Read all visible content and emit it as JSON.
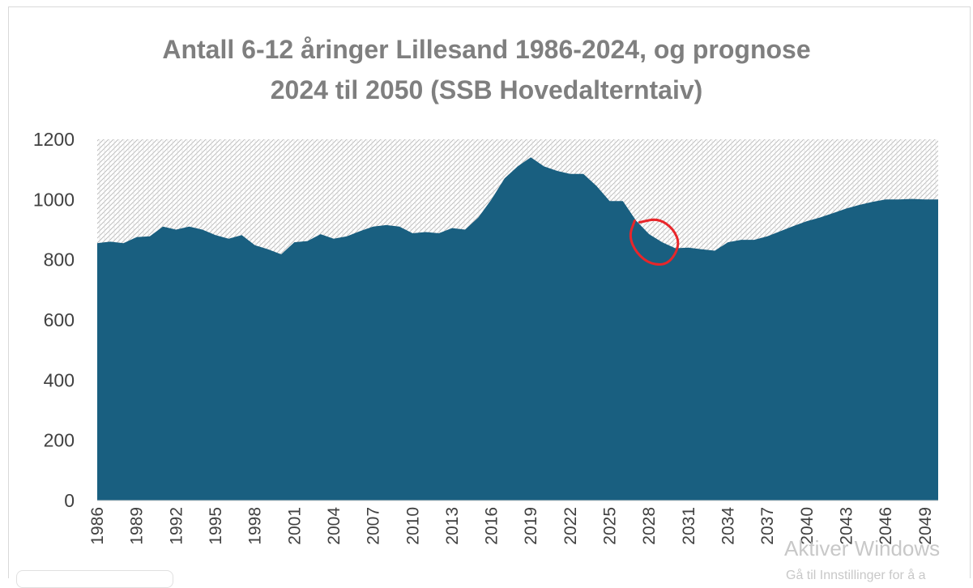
{
  "chart_data": {
    "type": "area",
    "title_lines": [
      "Antall 6-12 åringer Lillesand 1986-2024, og prognose",
      "2024 til 2050 (SSB Hovedalterntaiv)"
    ],
    "xlabel": "",
    "ylabel": "",
    "ylim": [
      0,
      1200
    ],
    "yticks": [
      0,
      200,
      400,
      600,
      800,
      1000,
      1200
    ],
    "x_tick_labels": [
      "1986",
      "1989",
      "1992",
      "1995",
      "1998",
      "2001",
      "2004",
      "2007",
      "2010",
      "2013",
      "2016",
      "2019",
      "2022",
      "2025",
      "2028",
      "2031",
      "2034",
      "2037",
      "2040",
      "2043",
      "2046",
      "2049"
    ],
    "x": [
      1986,
      1987,
      1988,
      1989,
      1990,
      1991,
      1992,
      1993,
      1994,
      1995,
      1996,
      1997,
      1998,
      1999,
      2000,
      2001,
      2002,
      2003,
      2004,
      2005,
      2006,
      2007,
      2008,
      2009,
      2010,
      2011,
      2012,
      2013,
      2014,
      2015,
      2016,
      2017,
      2018,
      2019,
      2020,
      2021,
      2022,
      2023,
      2024,
      2025,
      2026,
      2027,
      2028,
      2029,
      2030,
      2031,
      2032,
      2033,
      2034,
      2035,
      2036,
      2037,
      2038,
      2039,
      2040,
      2041,
      2042,
      2043,
      2044,
      2045,
      2046,
      2047,
      2048,
      2049,
      2050
    ],
    "values": [
      855,
      860,
      855,
      875,
      878,
      910,
      900,
      910,
      900,
      882,
      870,
      882,
      848,
      835,
      818,
      858,
      862,
      885,
      870,
      878,
      895,
      910,
      915,
      910,
      888,
      892,
      888,
      905,
      900,
      940,
      1000,
      1070,
      1110,
      1140,
      1110,
      1095,
      1085,
      1085,
      1045,
      995,
      995,
      930,
      885,
      858,
      838,
      840,
      835,
      830,
      858,
      866,
      866,
      878,
      895,
      912,
      928,
      940,
      955,
      970,
      982,
      992,
      1000,
      1000,
      1002,
      1000,
      1000
    ],
    "fill_color": "#195f80",
    "background_pattern": "hatched",
    "grid": false,
    "legend": "none"
  },
  "annotation": {
    "type": "hand-drawn-circle",
    "color": "#e8262a",
    "around_x": 2029,
    "around_value": 865
  },
  "watermark": {
    "line1": "Aktiver Windows",
    "line2": "Gå til Innstillinger for å a"
  }
}
